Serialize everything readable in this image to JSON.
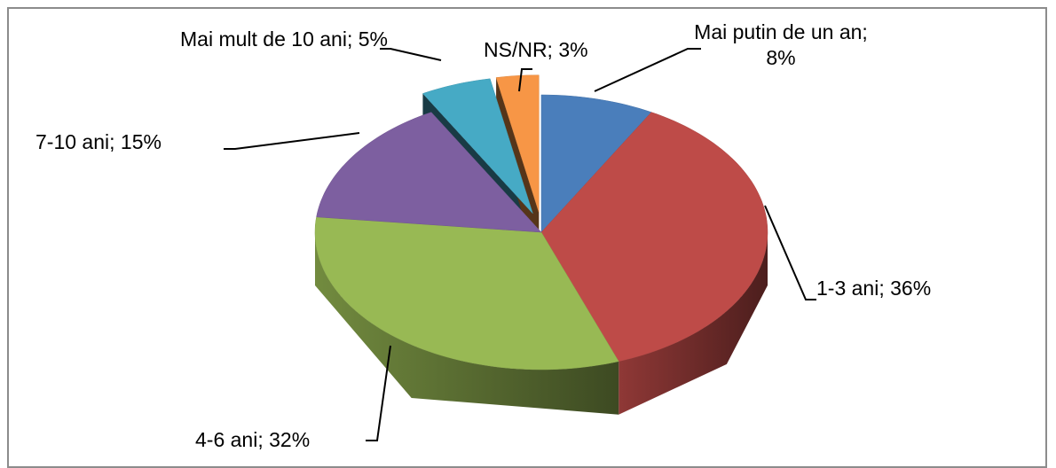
{
  "chart_data": {
    "type": "pie",
    "values": [
      8,
      36,
      32,
      15,
      5,
      3
    ],
    "value_labels": [
      "Mai putin de un an; 8%",
      "1-3 ani; 36%",
      "4-6 ani; 32%",
      "7-10 ani; 15%",
      "Mai mult de 10 ani; 5%",
      "NS/NR; 3%"
    ],
    "colors": [
      "#4a7ebb",
      "#be4b48",
      "#98b954",
      "#7d5fa0",
      "#46aac5",
      "#f79646"
    ],
    "exploded": [
      false,
      false,
      false,
      false,
      true,
      true
    ]
  }
}
